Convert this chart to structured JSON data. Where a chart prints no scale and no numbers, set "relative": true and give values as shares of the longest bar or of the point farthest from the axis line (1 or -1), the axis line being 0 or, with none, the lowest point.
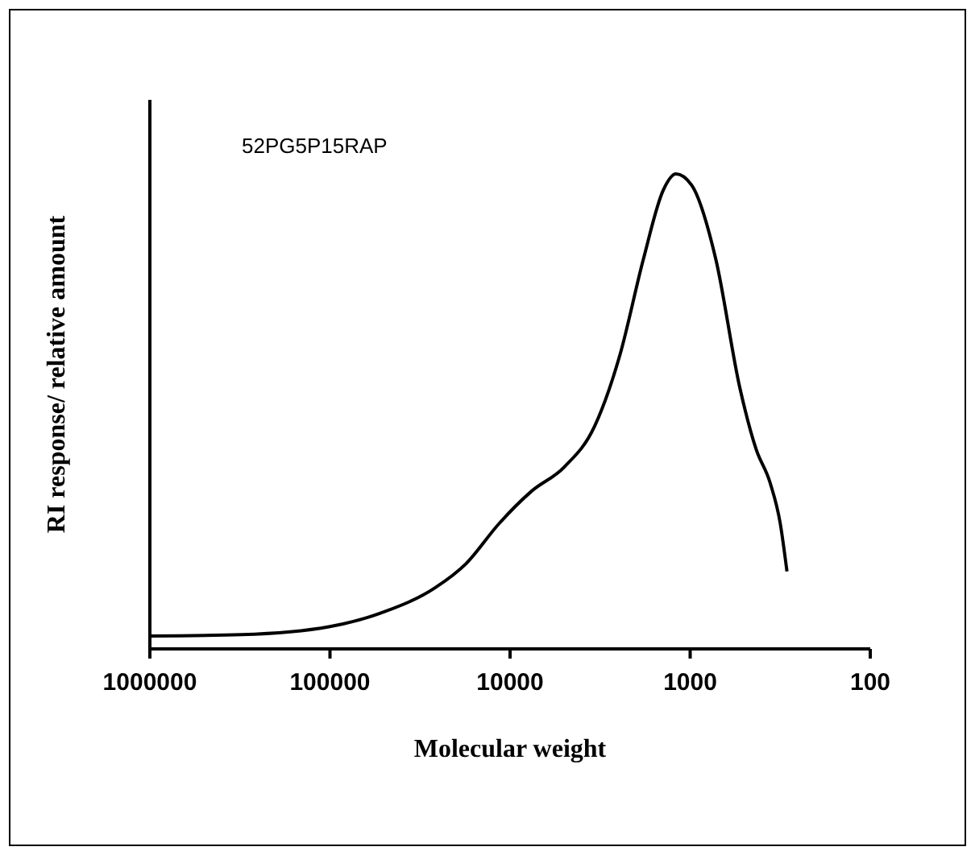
{
  "chart_data": {
    "type": "line",
    "relative": true,
    "log": "x",
    "xlabel": "Molecular weight",
    "ylabel": "RI response/ relative amount",
    "annotations": [
      "52PG5P15RAP"
    ],
    "xlim": [
      1000000,
      100
    ],
    "xticks": [
      1000000,
      100000,
      10000,
      1000,
      100
    ],
    "marker": "none",
    "line_style": "solid",
    "series": [
      {
        "color": "#000000",
        "x": [
          1000000,
          309000,
          100000,
          50000,
          26000,
          17500,
          11500,
          7600,
          5000,
          3400,
          2450,
          1820,
          1410,
          1200,
          980,
          720,
          530,
          430,
          360,
          316,
          290
        ],
        "values": [
          0.027,
          0.03,
          0.047,
          0.078,
          0.129,
          0.18,
          0.264,
          0.332,
          0.383,
          0.468,
          0.62,
          0.82,
          0.966,
          1.0,
          0.976,
          0.82,
          0.55,
          0.42,
          0.35,
          0.264,
          0.163
        ]
      }
    ]
  }
}
